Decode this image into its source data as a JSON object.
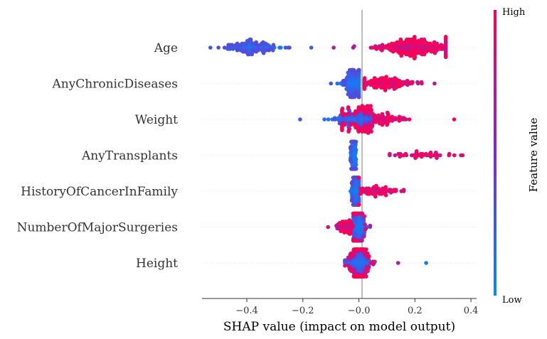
{
  "chart_data": {
    "type": "scatter",
    "subtype": "shap-beeswarm",
    "title": "",
    "xlabel": "SHAP value (impact on model output)",
    "ylabel": "",
    "xlim": [
      -0.56,
      0.42
    ],
    "xticks": [
      -0.4,
      -0.2,
      -0.0,
      0.2,
      0.4
    ],
    "xtick_labels": [
      "−0.4",
      "−0.2",
      "−0.0",
      "0.2",
      "0.4"
    ],
    "features": [
      {
        "name": "Age",
        "low": {
          "center": -0.38,
          "min": -0.53,
          "max": -0.17,
          "spread": 0.05,
          "count": 170
        },
        "high": {
          "center": 0.2,
          "min": -0.09,
          "max": 0.31,
          "spread": 0.065,
          "count": 300
        }
      },
      {
        "name": "AnyChronicDiseases",
        "low": {
          "center": -0.02,
          "min": -0.1,
          "max": 0.0,
          "spread": 0.02,
          "count": 200
        },
        "high": {
          "center": 0.09,
          "min": 0.02,
          "max": 0.27,
          "spread": 0.05,
          "count": 150
        }
      },
      {
        "name": "Weight",
        "low": {
          "center": -0.01,
          "min": -0.21,
          "max": 0.05,
          "spread": 0.04,
          "count": 180
        },
        "high": {
          "center": 0.04,
          "min": -0.06,
          "max": 0.34,
          "spread": 0.06,
          "count": 180
        }
      },
      {
        "name": "AnyTransplants",
        "low": {
          "center": -0.02,
          "min": -0.03,
          "max": -0.01,
          "spread": 0.004,
          "count": 300
        },
        "high": {
          "center": 0.22,
          "min": 0.11,
          "max": 0.37,
          "spread": 0.06,
          "count": 50
        }
      },
      {
        "name": "HistoryOfCancerInFamily",
        "low": {
          "center": -0.01,
          "min": -0.03,
          "max": 0.0,
          "spread": 0.006,
          "count": 260
        },
        "high": {
          "center": 0.06,
          "min": 0.0,
          "max": 0.16,
          "spread": 0.035,
          "count": 90
        }
      },
      {
        "name": "NumberOfMajorSurgeries",
        "low": {
          "center": 0.0,
          "min": -0.02,
          "max": 0.04,
          "spread": 0.01,
          "count": 220
        },
        "high": {
          "center": -0.03,
          "min": -0.11,
          "max": 0.04,
          "spread": 0.025,
          "count": 120
        }
      },
      {
        "name": "Height",
        "low": {
          "center": 0.0,
          "min": -0.05,
          "max": 0.24,
          "spread": 0.02,
          "count": 170
        },
        "high": {
          "center": 0.0,
          "min": -0.05,
          "max": 0.14,
          "spread": 0.02,
          "count": 170
        }
      }
    ],
    "colorbar": {
      "title": "Feature value",
      "high_label": "High",
      "low_label": "Low",
      "low_color": "#008bfb",
      "mid_color": "#7c2bd0",
      "high_color": "#ff0052"
    },
    "grid": false
  }
}
